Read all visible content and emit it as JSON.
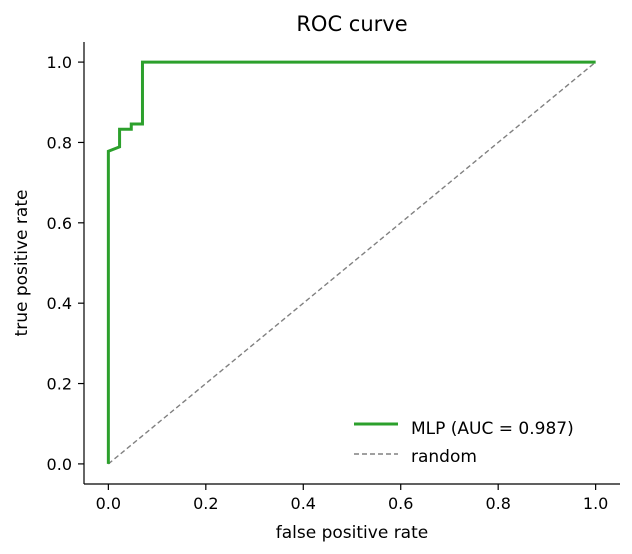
{
  "chart_data": {
    "type": "line",
    "title": "ROC curve",
    "xlabel": "false positive rate",
    "ylabel": "true positive rate",
    "xlim": [
      -0.05,
      1.05
    ],
    "ylim": [
      -0.05,
      1.05
    ],
    "xticks": [
      0.0,
      0.2,
      0.4,
      0.6,
      0.8,
      1.0
    ],
    "yticks": [
      0.0,
      0.2,
      0.4,
      0.6,
      0.8,
      1.0
    ],
    "xtick_labels": [
      "0.0",
      "0.2",
      "0.4",
      "0.6",
      "0.8",
      "1.0"
    ],
    "ytick_labels": [
      "0.0",
      "0.2",
      "0.4",
      "0.6",
      "0.8",
      "1.0"
    ],
    "grid": false,
    "legend_position": "lower-right",
    "series": [
      {
        "name": "MLP (AUC = 0.987)",
        "color": "#2ca02c",
        "style": "solid",
        "step": true,
        "x": [
          0.0,
          0.0,
          0.0,
          0.023,
          0.023,
          0.047,
          0.047,
          0.07,
          0.07,
          1.0
        ],
        "y": [
          0.0,
          0.778,
          0.778,
          0.789,
          0.833,
          0.833,
          0.846,
          0.846,
          1.0,
          1.0
        ]
      },
      {
        "name": "random",
        "color": "#808080",
        "style": "dashed",
        "step": false,
        "x": [
          0.0,
          1.0
        ],
        "y": [
          0.0,
          1.0
        ]
      }
    ]
  }
}
